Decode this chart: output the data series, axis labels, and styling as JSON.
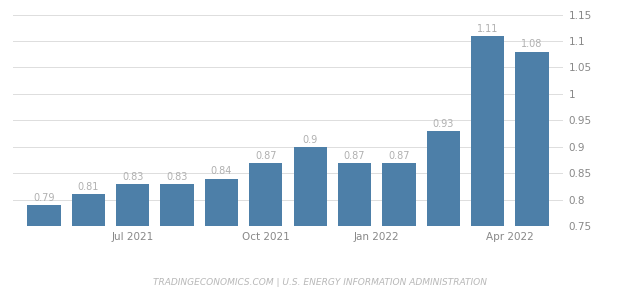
{
  "values": [
    0.79,
    0.81,
    0.83,
    0.83,
    0.84,
    0.87,
    0.9,
    0.87,
    0.87,
    0.93,
    1.11,
    1.08
  ],
  "bar_color": "#4d7fa8",
  "ylim": [
    0.75,
    1.15
  ],
  "yticks": [
    0.75,
    0.8,
    0.85,
    0.9,
    0.95,
    1.0,
    1.05,
    1.1,
    1.15
  ],
  "xtick_positions": [
    2,
    5,
    7.5,
    10.5
  ],
  "xtick_labels": [
    "Jul 2021",
    "Oct 2021",
    "Jan 2022",
    "Apr 2022"
  ],
  "watermark": "TRADINGECONOMICS.COM | U.S. ENERGY INFORMATION ADMINISTRATION",
  "background_color": "#ffffff",
  "grid_color": "#dddddd",
  "label_color": "#b0b0b0",
  "tick_color": "#888888",
  "bar_labels": [
    "0.79",
    "0.81",
    "0.83",
    "0.83",
    "0.84",
    "0.87",
    "0.9",
    "0.87",
    "0.87",
    "0.93",
    "1.11",
    "1.08"
  ]
}
